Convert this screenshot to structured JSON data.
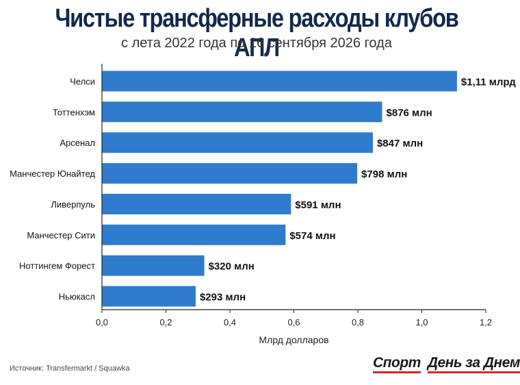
{
  "header": {
    "title": "Чистые трансферные расходы клубов АПЛ",
    "subtitle": "с лета 2022 года по 16 сентября 2026 года"
  },
  "footer": {
    "source": "Источник: Transfermarkt / Squawka",
    "brand_part1": "Спорт",
    "brand_part2": "День за Днем"
  },
  "colors": {
    "bar": "#2f7ccf",
    "title": "#13294b",
    "brand_accent": "#d7262c"
  },
  "chart_data": {
    "type": "bar",
    "orientation": "horizontal",
    "categories": [
      "Челси",
      "Тоттенхэм",
      "Арсенал",
      "Манчестер Юнайтед",
      "Ливерпуль",
      "Манчестер Сити",
      "Ноттингем Форест",
      "Ньюкасл"
    ],
    "values": [
      1.11,
      0.876,
      0.847,
      0.798,
      0.591,
      0.574,
      0.32,
      0.293
    ],
    "data_labels": [
      "$1,11 млрд",
      "$876 млн",
      "$847 млн",
      "$798 млн",
      "$591 млн",
      "$574 млн",
      "$320 млн",
      "$293 млн"
    ],
    "title": "Чистые трансферные расходы клубов АПЛ",
    "subtitle": "с лета 2022 года по 16 сентября 2026 года",
    "xlabel": "Млрд долларов",
    "ylabel": "",
    "xlim": [
      0,
      1.2
    ],
    "xticks": [
      0,
      0.2,
      0.4,
      0.6,
      0.8,
      1.0,
      1.2
    ],
    "xtick_labels": [
      "0,0",
      "0,2",
      "0,4",
      "0,6",
      "0,8",
      "1,0",
      "1,2"
    ],
    "grid": false
  }
}
